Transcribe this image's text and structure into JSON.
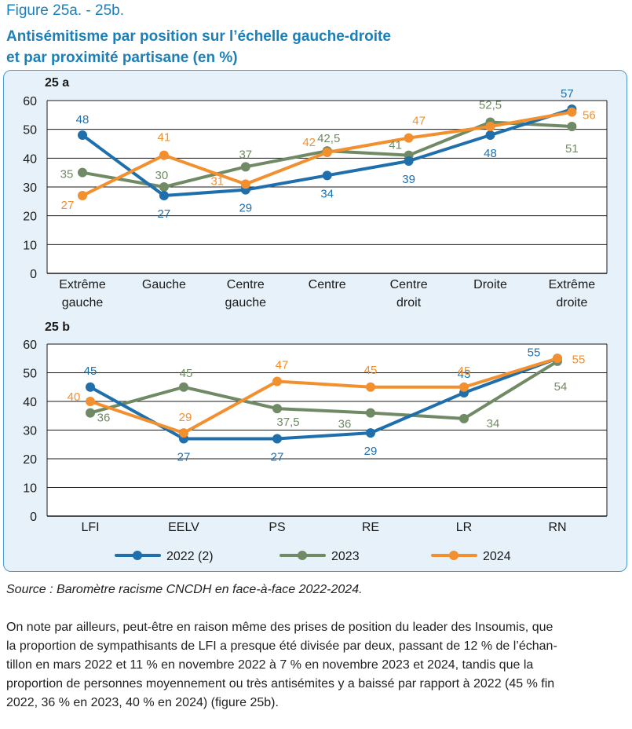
{
  "figure_label": "Figure 25a. - 25b.",
  "title_line1": "Antisémitisme par position sur l’échelle gauche-droite",
  "title_line2": "et par proximité partisane (en %)",
  "source": "Source : Baromètre racisme CNCDH en face-à-face 2022-2024.",
  "body_lines": [
    "On note par ailleurs, peut-être en raison même des prises de position du leader des Insoumis, que",
    "la proportion de sympathisants de LFI a presque été divisée par deux, passant de 12 % de l’échan-",
    "tillon en mars 2022 et 11 % en novembre 2022 à 7 % en novembre 2023 et 2024, tandis que la",
    "proportion de personnes moyennement ou très antisémites y a baissé par rapport à 2022 (45 % fin",
    "2022, 36 % en 2023, 40 % en 2024) (figure 25b)."
  ],
  "colors": {
    "2022": "#1f6fad",
    "2023": "#6f8a64",
    "2024": "#f2902f"
  },
  "chart_data": [
    {
      "type": "line",
      "title": "25 a",
      "categories": [
        [
          "Extrême",
          "gauche"
        ],
        [
          "Gauche"
        ],
        [
          "Centre",
          "gauche"
        ],
        [
          "Centre"
        ],
        [
          "Centre",
          "droit"
        ],
        [
          "Droite"
        ],
        [
          "Extrême",
          "droite"
        ]
      ],
      "ylim": [
        0,
        60
      ],
      "yticks": [
        0,
        10,
        20,
        30,
        40,
        50,
        60
      ],
      "grid": true,
      "series": [
        {
          "name": "2022 (2)",
          "key": "2022",
          "values": [
            48,
            27,
            29,
            34,
            39,
            48,
            57
          ],
          "labels": [
            "48",
            "27",
            "29",
            "34",
            "39",
            "48",
            "57"
          ]
        },
        {
          "name": "2023",
          "key": "2023",
          "values": [
            35,
            30,
            37,
            42.5,
            41,
            52.5,
            51
          ],
          "labels": [
            "35",
            "30",
            "37",
            "42,5",
            "41",
            "52,5",
            "51"
          ]
        },
        {
          "name": "2024",
          "key": "2024",
          "values": [
            27,
            41,
            31,
            42,
            47,
            51,
            56
          ],
          "labels": [
            "27",
            "41",
            "31",
            "42",
            "47",
            "",
            "56"
          ]
        }
      ]
    },
    {
      "type": "line",
      "title": "25 b",
      "categories": [
        [
          "LFI"
        ],
        [
          "EELV"
        ],
        [
          "PS"
        ],
        [
          "RE"
        ],
        [
          "LR"
        ],
        [
          "RN"
        ]
      ],
      "ylim": [
        0,
        60
      ],
      "yticks": [
        0,
        10,
        20,
        30,
        40,
        50,
        60
      ],
      "grid": true,
      "series": [
        {
          "name": "2022 (2)",
          "key": "2022",
          "values": [
            45,
            27,
            27,
            29,
            43,
            55
          ],
          "labels": [
            "45",
            "27",
            "27",
            "29",
            "43",
            "55"
          ]
        },
        {
          "name": "2023",
          "key": "2023",
          "values": [
            36,
            45,
            37.5,
            36,
            34,
            54
          ],
          "labels": [
            "36",
            "45",
            "37,5",
            "36",
            "34",
            "54"
          ]
        },
        {
          "name": "2024",
          "key": "2024",
          "values": [
            40,
            29,
            47,
            45,
            45,
            55
          ],
          "labels": [
            "40",
            "29",
            "47",
            "45",
            "45",
            "55"
          ]
        }
      ]
    }
  ],
  "legend": [
    {
      "label": "2022 (2)",
      "key": "2022"
    },
    {
      "label": "2023",
      "key": "2023"
    },
    {
      "label": "2024",
      "key": "2024"
    }
  ]
}
